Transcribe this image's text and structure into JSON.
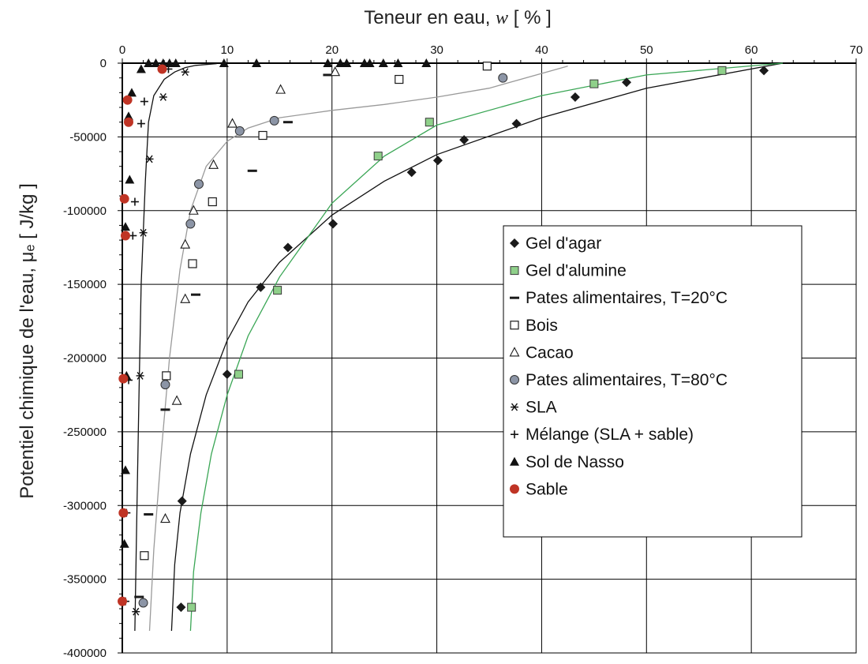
{
  "chart_data": {
    "type": "scatter",
    "title": "",
    "xlabel": {
      "prefix": "Teneur en eau, ",
      "symbol": "w",
      "suffix": "  [ % ]"
    },
    "ylabel": "Potentiel chimique de l'eau, μₑ  [ J/kg ]",
    "x_axis_position": "top",
    "xlim": [
      0,
      70
    ],
    "ylim": [
      -400000,
      0
    ],
    "x_ticks": [
      0,
      10,
      20,
      30,
      40,
      50,
      60,
      70
    ],
    "y_ticks": [
      0,
      -50000,
      -100000,
      -150000,
      -200000,
      -250000,
      -300000,
      -350000,
      -400000
    ],
    "grid": true,
    "legend_position": "right",
    "series": [
      {
        "name": "Gel d'agar",
        "marker": "diamond",
        "color": "#1a1a1a",
        "points": [
          [
            61.2,
            -5000
          ],
          [
            48.1,
            -13000
          ],
          [
            43.2,
            -23000
          ],
          [
            37.6,
            -41000
          ],
          [
            32.6,
            -52000
          ],
          [
            30.1,
            -66000
          ],
          [
            27.6,
            -74000
          ],
          [
            20.1,
            -109000
          ],
          [
            15.8,
            -125000
          ],
          [
            13.2,
            -152000
          ],
          [
            10.0,
            -211000
          ],
          [
            5.7,
            -297000
          ],
          [
            5.6,
            -369000
          ]
        ]
      },
      {
        "name": "Gel d'alumine",
        "marker": "square-filled",
        "color": "#8fd08a",
        "points": [
          [
            57.2,
            -5000
          ],
          [
            45.0,
            -14000
          ],
          [
            29.3,
            -40000
          ],
          [
            24.4,
            -63000
          ],
          [
            14.8,
            -154000
          ],
          [
            11.1,
            -211000
          ],
          [
            6.6,
            -369000
          ]
        ]
      },
      {
        "name": "Pates alimentaires, T=20°C",
        "marker": "dash",
        "color": "#1a1a1a",
        "points": [
          [
            19.6,
            -8000
          ],
          [
            15.8,
            -40000
          ],
          [
            12.4,
            -73000
          ],
          [
            7.0,
            -157000
          ],
          [
            4.1,
            -235000
          ],
          [
            2.5,
            -306000
          ],
          [
            1.6,
            -362000
          ]
        ]
      },
      {
        "name": "Bois",
        "marker": "square-open",
        "color": "#1a1a1a",
        "points": [
          [
            34.8,
            -2000
          ],
          [
            26.4,
            -11000
          ],
          [
            13.4,
            -49000
          ],
          [
            8.6,
            -94000
          ],
          [
            6.7,
            -136000
          ],
          [
            4.2,
            -212000
          ],
          [
            2.1,
            -334000
          ]
        ]
      },
      {
        "name": "Cacao",
        "marker": "triangle-open",
        "color": "#1a1a1a",
        "points": [
          [
            15.1,
            -18000
          ],
          [
            20.3,
            -6000
          ],
          [
            10.5,
            -41000
          ],
          [
            8.7,
            -69000
          ],
          [
            6.8,
            -100000
          ],
          [
            6.0,
            -123000
          ],
          [
            6.0,
            -160000
          ],
          [
            5.2,
            -229000
          ],
          [
            4.1,
            -309000
          ]
        ]
      },
      {
        "name": "Pates alimentaires, T=80°C",
        "marker": "circle-gray",
        "color": "#8c95a6",
        "points": [
          [
            36.3,
            -10000
          ],
          [
            14.5,
            -39000
          ],
          [
            11.2,
            -46000
          ],
          [
            7.3,
            -82000
          ],
          [
            6.5,
            -109000
          ],
          [
            4.1,
            -218000
          ],
          [
            2.0,
            -366000
          ]
        ]
      },
      {
        "name": "SLA",
        "marker": "asterisk",
        "color": "#1a1a1a",
        "points": [
          [
            6.0,
            -6000
          ],
          [
            3.9,
            -23000
          ],
          [
            2.6,
            -65000
          ],
          [
            2.0,
            -115000
          ],
          [
            1.7,
            -212000
          ],
          [
            1.3,
            -372000
          ]
        ]
      },
      {
        "name": "Mélange (SLA + sable)",
        "marker": "plus",
        "color": "#1a1a1a",
        "points": [
          [
            4.4,
            -4000
          ],
          [
            2.1,
            -26000
          ],
          [
            1.8,
            -41000
          ],
          [
            1.2,
            -94000
          ],
          [
            1.0,
            -117000
          ],
          [
            0.6,
            -215000
          ],
          [
            0.4,
            -305000
          ],
          [
            0.3,
            -365000
          ]
        ]
      },
      {
        "name": "Sol de Nasso",
        "marker": "triangle-filled",
        "color": "#1a1a1a",
        "points": [
          [
            1.8,
            -4000
          ],
          [
            2.5,
            0
          ],
          [
            3.2,
            0
          ],
          [
            3.9,
            0
          ],
          [
            4.5,
            0
          ],
          [
            5.1,
            0
          ],
          [
            9.7,
            0
          ],
          [
            12.8,
            0
          ],
          [
            19.6,
            0
          ],
          [
            20.8,
            0
          ],
          [
            21.4,
            0
          ],
          [
            23.1,
            0
          ],
          [
            23.6,
            0
          ],
          [
            24.9,
            0
          ],
          [
            26.3,
            0
          ],
          [
            29.0,
            0
          ],
          [
            0.9,
            -20000
          ],
          [
            0.6,
            -36000
          ],
          [
            0.7,
            -79000
          ],
          [
            0.3,
            -111000
          ],
          [
            0.4,
            -212000
          ],
          [
            0.3,
            -276000
          ],
          [
            0.2,
            -326000
          ]
        ]
      },
      {
        "name": "Sable",
        "marker": "circle-red",
        "color": "#bf3425",
        "points": [
          [
            3.8,
            -4000
          ],
          [
            0.5,
            -25000
          ],
          [
            0.6,
            -40000
          ],
          [
            0.2,
            -92000
          ],
          [
            0.3,
            -117000
          ],
          [
            0.1,
            -214000
          ],
          [
            0.1,
            -305000
          ],
          [
            0.0,
            -365000
          ]
        ]
      }
    ],
    "fit_curves": [
      {
        "color": "#111111",
        "points": [
          [
            63.0,
            0
          ],
          [
            50.0,
            -17000
          ],
          [
            40.0,
            -37000
          ],
          [
            30.0,
            -62000
          ],
          [
            25.0,
            -80000
          ],
          [
            20.0,
            -103000
          ],
          [
            15.0,
            -135000
          ],
          [
            12.0,
            -162000
          ],
          [
            10.0,
            -188000
          ],
          [
            8.0,
            -225000
          ],
          [
            6.5,
            -265000
          ],
          [
            5.5,
            -305000
          ],
          [
            5.0,
            -340000
          ],
          [
            4.7,
            -385000
          ]
        ]
      },
      {
        "color": "#3aa655",
        "points": [
          [
            63.0,
            0
          ],
          [
            50.0,
            -8000
          ],
          [
            40.0,
            -22000
          ],
          [
            30.0,
            -42000
          ],
          [
            25.0,
            -63000
          ],
          [
            20.0,
            -95000
          ],
          [
            15.0,
            -145000
          ],
          [
            12.0,
            -185000
          ],
          [
            10.0,
            -225000
          ],
          [
            8.5,
            -265000
          ],
          [
            7.5,
            -305000
          ],
          [
            6.8,
            -345000
          ],
          [
            6.5,
            -385000
          ]
        ]
      },
      {
        "color": "#9a9a9a",
        "points": [
          [
            42.5,
            -2000
          ],
          [
            35.0,
            -17000
          ],
          [
            30.0,
            -23000
          ],
          [
            25.0,
            -28000
          ],
          [
            20.0,
            -32000
          ],
          [
            15.0,
            -37000
          ],
          [
            12.0,
            -44000
          ],
          [
            10.0,
            -53000
          ],
          [
            8.0,
            -70000
          ],
          [
            6.5,
            -100000
          ],
          [
            5.5,
            -140000
          ],
          [
            4.5,
            -200000
          ],
          [
            3.7,
            -265000
          ],
          [
            3.0,
            -330000
          ],
          [
            2.6,
            -385000
          ]
        ]
      },
      {
        "color": "#111111",
        "points": [
          [
            9.0,
            -300
          ],
          [
            7.0,
            -1500
          ],
          [
            6.0,
            -3000
          ],
          [
            5.0,
            -6000
          ],
          [
            4.0,
            -11000
          ],
          [
            3.0,
            -22000
          ],
          [
            2.5,
            -40000
          ],
          [
            2.2,
            -80000
          ],
          [
            1.8,
            -150000
          ],
          [
            1.6,
            -220000
          ],
          [
            1.4,
            -300000
          ],
          [
            1.2,
            -385000
          ]
        ]
      }
    ]
  }
}
